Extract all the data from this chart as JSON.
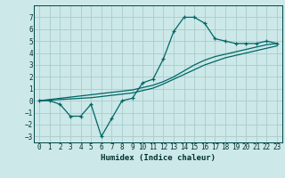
{
  "title": "",
  "xlabel": "Humidex (Indice chaleur)",
  "background_color": "#cce8e8",
  "grid_color": "#aacccc",
  "line_color": "#006666",
  "xlim": [
    -0.5,
    23.5
  ],
  "ylim": [
    -3.5,
    8.0
  ],
  "yticks": [
    -3,
    -2,
    -1,
    0,
    1,
    2,
    3,
    4,
    5,
    6,
    7
  ],
  "xticks": [
    0,
    1,
    2,
    3,
    4,
    5,
    6,
    7,
    8,
    9,
    10,
    11,
    12,
    13,
    14,
    15,
    16,
    17,
    18,
    19,
    20,
    21,
    22,
    23
  ],
  "line1_x": [
    0,
    1,
    2,
    3,
    4,
    5,
    6,
    7,
    8,
    9,
    10,
    11,
    12,
    13,
    14,
    15,
    16,
    17,
    18,
    19,
    20,
    21,
    22,
    23
  ],
  "line1_y": [
    0.0,
    0.0,
    -0.3,
    -1.3,
    -1.3,
    -0.3,
    -3.0,
    -1.5,
    0.0,
    0.2,
    1.5,
    1.8,
    3.5,
    5.8,
    7.0,
    7.0,
    6.5,
    5.2,
    5.0,
    4.8,
    4.8,
    4.8,
    5.0,
    4.8
  ],
  "line2_x": [
    0,
    1,
    2,
    3,
    4,
    5,
    6,
    7,
    8,
    9,
    10,
    11,
    12,
    13,
    14,
    15,
    16,
    17,
    18,
    19,
    20,
    21,
    22,
    23
  ],
  "line2_y": [
    0.0,
    0.1,
    0.2,
    0.3,
    0.4,
    0.5,
    0.6,
    0.7,
    0.8,
    0.9,
    1.1,
    1.3,
    1.6,
    2.0,
    2.5,
    3.0,
    3.4,
    3.7,
    3.9,
    4.1,
    4.3,
    4.5,
    4.7,
    4.8
  ],
  "line3_x": [
    0,
    1,
    2,
    3,
    4,
    5,
    6,
    7,
    8,
    9,
    10,
    11,
    12,
    13,
    14,
    15,
    16,
    17,
    18,
    19,
    20,
    21,
    22,
    23
  ],
  "line3_y": [
    0.0,
    0.05,
    0.1,
    0.15,
    0.2,
    0.25,
    0.35,
    0.45,
    0.55,
    0.65,
    0.85,
    1.05,
    1.4,
    1.8,
    2.2,
    2.6,
    3.0,
    3.3,
    3.6,
    3.8,
    4.0,
    4.2,
    4.4,
    4.6
  ]
}
